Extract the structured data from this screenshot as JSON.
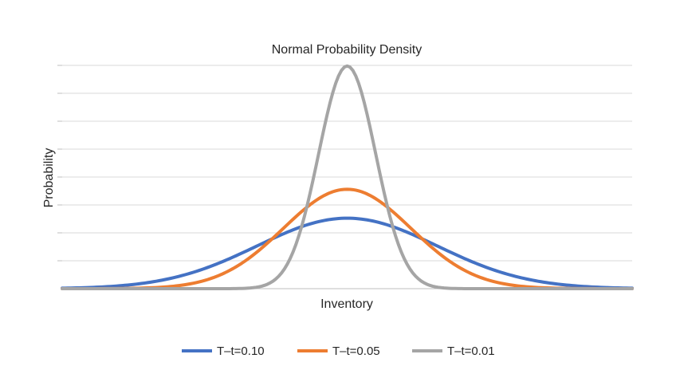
{
  "chart_data": {
    "type": "line",
    "title": "Normal Probability Density",
    "xlabel": "Inventory",
    "ylabel": "Probability",
    "x_range": [
      -1,
      1
    ],
    "ylim": [
      0,
      4.0
    ],
    "y_ticks": [
      0,
      0.5,
      1.0,
      1.5,
      2.0,
      2.5,
      3.0,
      3.5,
      4.0
    ],
    "grid": true,
    "legend": "bottom",
    "series": [
      {
        "name": "T–t=0.10",
        "color": "#4472C4",
        "distribution": "normal",
        "mean": 0,
        "std": 0.316
      },
      {
        "name": "T–t=0.05",
        "color": "#ED7D31",
        "distribution": "normal",
        "mean": 0,
        "std": 0.224
      },
      {
        "name": "T–t=0.01",
        "color": "#A5A5A5",
        "distribution": "normal",
        "mean": 0,
        "std": 0.1
      }
    ]
  }
}
